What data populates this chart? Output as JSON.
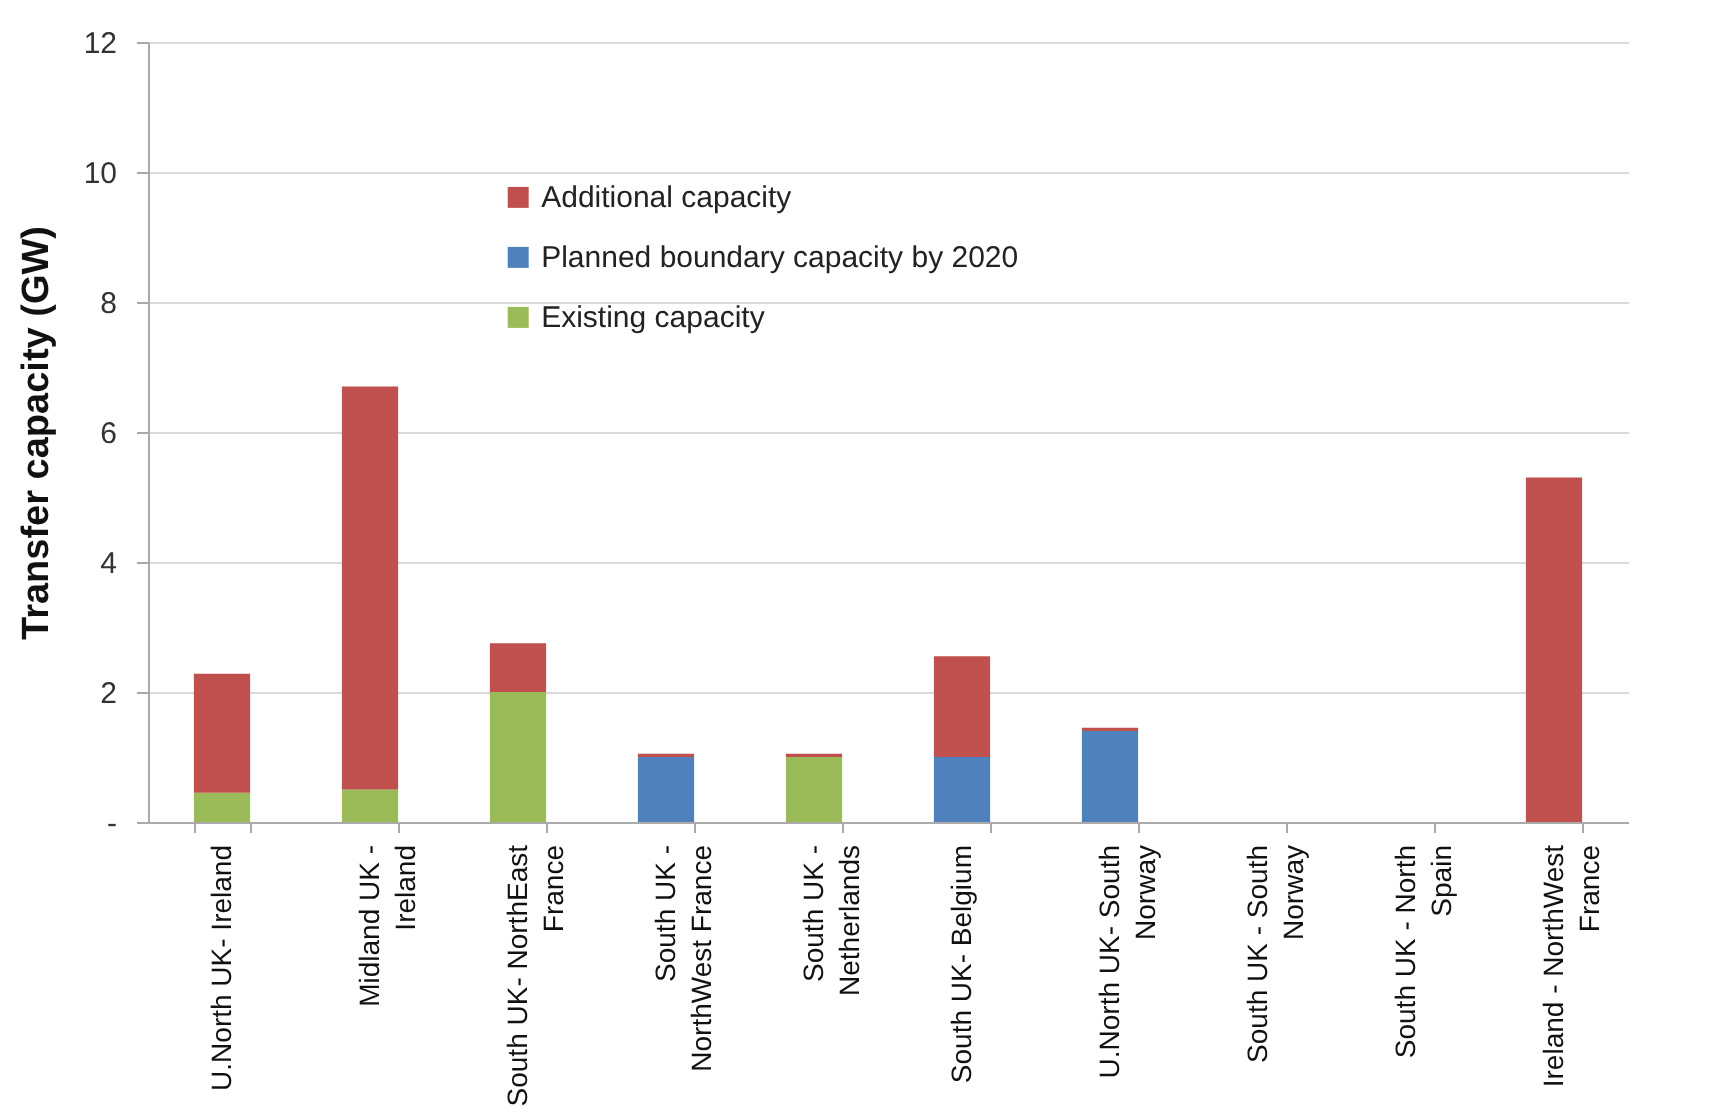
{
  "chart_data": {
    "type": "bar",
    "stacked": true,
    "ylabel": "Transfer capacity (GW)",
    "categories": [
      "U.North UK- Ireland",
      "Midland UK - Ireland",
      "South UK- NorthEast France",
      "South UK - NorthWest France",
      "South UK - Netherlands",
      "South UK- Belgium",
      "U.North UK- South Norway",
      "South UK - South Norway",
      "South UK - North Spain",
      "Ireland - NorthWest France"
    ],
    "series": [
      {
        "name": "Existing capacity",
        "color": "#9bbb59",
        "values": [
          0.45,
          0.5,
          2.0,
          0,
          1.0,
          0,
          0,
          0,
          0,
          0
        ]
      },
      {
        "name": "Planned boundary capacity by 2020",
        "color": "#4f81bd",
        "values": [
          0,
          0,
          0,
          1.0,
          0,
          1.0,
          1.4,
          0,
          0,
          0
        ]
      },
      {
        "name": "Additional capacity",
        "color": "#c0504d",
        "values": [
          1.83,
          6.2,
          0.75,
          0.05,
          0.05,
          1.55,
          0.05,
          0,
          0,
          5.3
        ]
      }
    ],
    "ylim": [
      0,
      12
    ],
    "yticks": [
      {
        "value": 0,
        "label": "-"
      },
      2,
      4,
      6,
      8,
      10,
      12
    ],
    "grid": "y",
    "legend": "top"
  }
}
